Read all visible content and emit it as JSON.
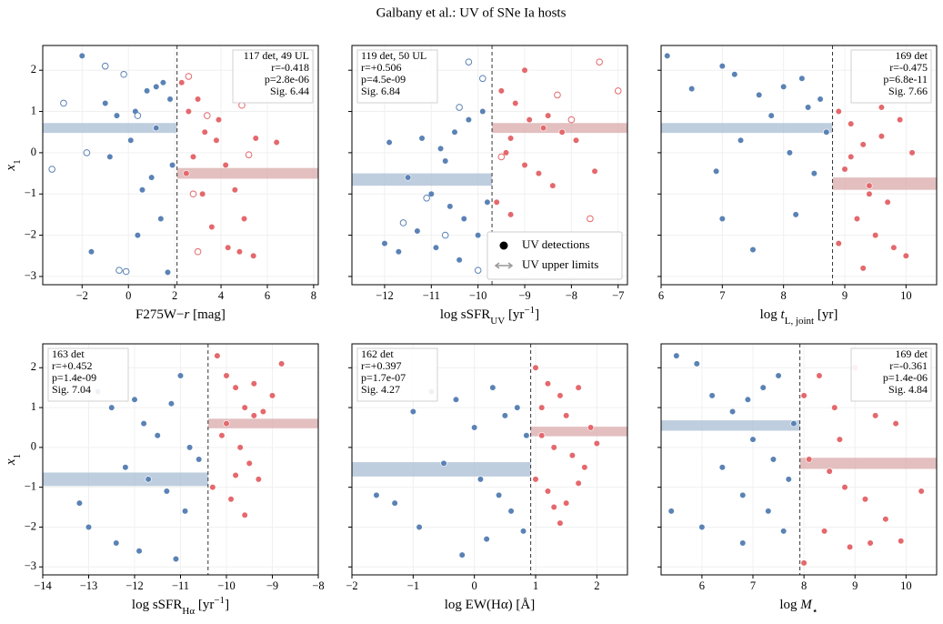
{
  "title": "Galbany et al.: UV of SNe Ia hosts",
  "chart_data": [
    {
      "type": "scatter",
      "xlabel": [
        {
          "t": "F275W−"
        },
        {
          "t": "r",
          "italic": true
        },
        {
          "t": " [mag]"
        }
      ],
      "ylabel": [
        {
          "t": "x",
          "italic": true
        },
        {
          "t": "1",
          "sub": true
        }
      ],
      "xlim": [
        -3.7,
        8.2
      ],
      "ylim": [
        -3.2,
        2.6
      ],
      "xticks": [
        {
          "value": -2,
          "label": "−2"
        },
        0,
        2,
        4,
        6,
        8
      ],
      "yticks": [
        {
          "value": -3,
          "label": "−3"
        },
        {
          "value": -2,
          "label": "−2"
        },
        {
          "value": -1,
          "label": "−1"
        },
        0,
        1,
        2
      ],
      "show_ytick_labels": true,
      "grid": true,
      "split": 2.1,
      "stats": [
        "117 det, 49 UL",
        "r=-0.418",
        "p=2.8e-06",
        "Sig. 6.44"
      ],
      "stats_loc": "upper right",
      "bands": [
        {
          "side": "left",
          "color": "#a9bdd3",
          "y": 0.6,
          "err": 0.12
        },
        {
          "side": "right",
          "color": "#d9aaab",
          "y": -0.5,
          "err": 0.13
        }
      ],
      "series": [
        {
          "color": "#5a82b5",
          "marker": "filled",
          "x": [
            -2,
            -1,
            -0.5,
            0.3,
            0.8,
            1.2,
            1.5,
            1.8,
            -0.8,
            0.1,
            0.6,
            1.0,
            1.4,
            1.9,
            -1.6,
            0.4,
            1.7,
            1.2
          ],
          "values": [
            2.35,
            1.2,
            0.9,
            1.0,
            1.5,
            1.6,
            1.7,
            1.3,
            -0.1,
            0.3,
            -0.9,
            -0.6,
            -1.6,
            -0.3,
            -2.4,
            -2.0,
            -2.9,
            0.6
          ]
        },
        {
          "color": "#e4686c",
          "marker": "filled",
          "x": [
            2.3,
            2.6,
            3.0,
            3.3,
            3.8,
            4.2,
            4.6,
            5.0,
            5.5,
            6.4,
            2.5,
            3.2,
            3.6,
            4.3,
            4.8,
            5.4,
            2.8,
            3.9
          ],
          "values": [
            1.7,
            1.0,
            1.3,
            0.5,
            0.3,
            -0.3,
            -0.9,
            -1.6,
            0.35,
            0.25,
            -0.5,
            -1.0,
            -1.8,
            -2.3,
            -2.4,
            -2.5,
            -0.1,
            0.8
          ]
        },
        {
          "color": "#5a82b5",
          "marker": "open",
          "x": [
            -1,
            -0.2,
            -2.8,
            -3.3,
            0.4,
            -0.4,
            -0.1,
            -1.8
          ],
          "values": [
            2.1,
            1.9,
            1.2,
            -0.4,
            0.9,
            -2.85,
            -2.88,
            0
          ]
        },
        {
          "color": "#e4686c",
          "marker": "open",
          "x": [
            2.6,
            3.4,
            4.9,
            3.0,
            5.2,
            2.8
          ],
          "values": [
            1.85,
            0.9,
            1.15,
            -2.4,
            -0.05,
            -1.0
          ]
        }
      ]
    },
    {
      "type": "scatter",
      "xlabel": [
        {
          "t": "log sSFR"
        },
        {
          "t": "UV",
          "sub": true
        },
        {
          "t": " [yr"
        },
        {
          "t": "−1",
          "sup": true
        },
        {
          "t": "]"
        }
      ],
      "xlim": [
        -12.7,
        -6.8
      ],
      "ylim": [
        -3.2,
        2.6
      ],
      "xticks": [
        {
          "value": -12,
          "label": "−12"
        },
        {
          "value": -11,
          "label": "−11"
        },
        {
          "value": -10,
          "label": "−10"
        },
        {
          "value": -9,
          "label": "−9"
        },
        {
          "value": -8,
          "label": "−8"
        },
        {
          "value": -7,
          "label": "−7"
        }
      ],
      "yticks": [
        -3,
        -2,
        -1,
        0,
        1,
        2
      ],
      "show_ytick_labels": false,
      "grid": true,
      "split": -9.7,
      "stats": [
        "119 det, 50 UL",
        "r=+0.506",
        "p=4.5e-09",
        "Sig. 6.84"
      ],
      "stats_loc": "upper left",
      "bands": [
        {
          "side": "left",
          "color": "#a9bdd3",
          "y": -0.65,
          "err": 0.15
        },
        {
          "side": "right",
          "color": "#d9aaab",
          "y": 0.6,
          "err": 0.12
        }
      ],
      "legend": {
        "loc": "lower right",
        "entries": [
          {
            "label": "UV detections",
            "marker": "filled"
          },
          {
            "label": "UV upper limits",
            "marker": "arrow"
          }
        ]
      },
      "series": [
        {
          "color": "#5a82b5",
          "marker": "filled",
          "x": [
            -11.9,
            -11.2,
            -10.8,
            -10.5,
            -10.2,
            -9.9,
            -11.5,
            -11.0,
            -10.6,
            -10.3,
            -10.0,
            -11.7,
            -10.9,
            -10.4,
            -9.8,
            -11.3,
            -10.7,
            -12.0
          ],
          "values": [
            0.25,
            0.35,
            0.1,
            0.5,
            0.8,
            1.0,
            -0.6,
            -1.0,
            -1.3,
            -1.6,
            -2.0,
            -2.4,
            -2.3,
            -2.6,
            -1.2,
            -1.9,
            -0.2,
            -2.2
          ]
        },
        {
          "color": "#e4686c",
          "marker": "filled",
          "x": [
            -9.5,
            -9.2,
            -8.9,
            -8.6,
            -8.2,
            -7.9,
            -9.4,
            -9.0,
            -8.7,
            -8.4,
            -9.6,
            -9.3,
            -8.8,
            -9.1,
            -7.5,
            -8.5,
            -9.3,
            -9.0
          ],
          "values": [
            1.5,
            1.2,
            0.8,
            0.6,
            0.5,
            0.3,
            0.0,
            -0.3,
            -0.5,
            -0.8,
            -1.2,
            -1.5,
            -2.0,
            -2.1,
            -0.45,
            0.9,
            0.35,
            2.0
          ]
        },
        {
          "color": "#5a82b5",
          "marker": "open",
          "x": [
            -10.2,
            -9.9,
            -10.4,
            -11.1,
            -11.6,
            -10.7,
            -10.0
          ],
          "values": [
            2.2,
            1.8,
            1.1,
            -1.1,
            -1.7,
            -2.0,
            -2.85
          ]
        },
        {
          "color": "#e4686c",
          "marker": "open",
          "x": [
            -7.4,
            -7.0,
            -8.0,
            -9.5,
            -7.6,
            -8.3
          ],
          "values": [
            2.2,
            1.5,
            0.8,
            -0.1,
            -1.6,
            1.4
          ]
        }
      ]
    },
    {
      "type": "scatter",
      "xlabel": [
        {
          "t": "log "
        },
        {
          "t": "t",
          "italic": true
        },
        {
          "t": "L, joint",
          "sub": true
        },
        {
          "t": " [yr]"
        }
      ],
      "xlim": [
        6,
        10.5
      ],
      "ylim": [
        -3.2,
        2.6
      ],
      "xticks": [
        6,
        7,
        8,
        9,
        10
      ],
      "yticks": [
        -3,
        -2,
        -1,
        0,
        1,
        2
      ],
      "show_ytick_labels": false,
      "grid": true,
      "split": 8.8,
      "stats": [
        "169 det",
        "r=-0.475",
        "p=6.8e-11",
        "Sig. 7.66"
      ],
      "stats_loc": "upper right",
      "bands": [
        {
          "side": "left",
          "color": "#a9bdd3",
          "y": 0.6,
          "err": 0.12
        },
        {
          "side": "right",
          "color": "#d9aaab",
          "y": -0.75,
          "err": 0.15
        }
      ],
      "series": [
        {
          "color": "#5a82b5",
          "marker": "filled",
          "x": [
            6.1,
            6.5,
            7.0,
            7.2,
            7.6,
            8.0,
            8.3,
            8.6,
            7.8,
            8.4,
            8.7,
            7.3,
            8.1,
            8.5,
            7.0,
            7.5,
            8.2,
            6.9
          ],
          "values": [
            2.35,
            1.55,
            2.1,
            1.9,
            1.4,
            1.6,
            1.8,
            1.3,
            0.9,
            1.1,
            0.5,
            0.3,
            0.0,
            -0.5,
            -1.6,
            -2.35,
            -1.5,
            -0.45
          ]
        },
        {
          "color": "#e4686c",
          "marker": "filled",
          "x": [
            8.9,
            9.1,
            9.3,
            9.6,
            9.9,
            10.1,
            9.0,
            9.4,
            9.7,
            9.2,
            9.5,
            9.8,
            10.0,
            9.3,
            9.1,
            9.6,
            8.9,
            9.4
          ],
          "values": [
            1.0,
            0.7,
            0.2,
            0.4,
            0.8,
            0.0,
            -0.4,
            -0.8,
            -1.2,
            -1.6,
            -2.0,
            -2.3,
            -2.5,
            -2.8,
            -0.1,
            1.1,
            -2.2,
            -1.0
          ]
        }
      ]
    },
    {
      "type": "scatter",
      "xlabel": [
        {
          "t": "log sSFR"
        },
        {
          "t": "Hα",
          "sub": true
        },
        {
          "t": " [yr"
        },
        {
          "t": "−1",
          "sup": true
        },
        {
          "t": "]"
        }
      ],
      "ylabel": [
        {
          "t": "x",
          "italic": true
        },
        {
          "t": "1",
          "sub": true
        }
      ],
      "xlim": [
        -14,
        -8
      ],
      "ylim": [
        -3.2,
        2.6
      ],
      "xticks": [
        {
          "value": -14,
          "label": "−14"
        },
        {
          "value": -13,
          "label": "−13"
        },
        {
          "value": -12,
          "label": "−12"
        },
        {
          "value": -11,
          "label": "−11"
        },
        {
          "value": -10,
          "label": "−10"
        },
        {
          "value": -9,
          "label": "−9"
        },
        {
          "value": -8,
          "label": "−8"
        }
      ],
      "yticks": [
        {
          "value": -3,
          "label": "−3"
        },
        {
          "value": -2,
          "label": "−2"
        },
        {
          "value": -1,
          "label": "−1"
        },
        0,
        1,
        2
      ],
      "show_ytick_labels": true,
      "grid": true,
      "split": -10.4,
      "stats": [
        "163 det",
        "r=+0.452",
        "p=1.4e-09",
        "Sig. 7.04"
      ],
      "stats_loc": "upper left",
      "bands": [
        {
          "side": "left",
          "color": "#a9bdd3",
          "y": -0.8,
          "err": 0.17
        },
        {
          "side": "right",
          "color": "#d9aaab",
          "y": 0.6,
          "err": 0.12
        }
      ],
      "series": [
        {
          "color": "#5a82b5",
          "marker": "filled",
          "x": [
            -13.2,
            -12.8,
            -12.5,
            -12.0,
            -11.8,
            -11.5,
            -11.2,
            -11.0,
            -10.8,
            -10.6,
            -12.2,
            -11.7,
            -11.3,
            -10.9,
            -13.0,
            -12.4,
            -11.9,
            -11.1
          ],
          "values": [
            -1.4,
            1.4,
            1.0,
            1.2,
            0.6,
            0.3,
            1.1,
            1.8,
            0.0,
            -0.3,
            -0.5,
            -0.8,
            -1.1,
            -1.6,
            -2.0,
            -2.4,
            -2.6,
            -2.8
          ]
        },
        {
          "color": "#e4686c",
          "marker": "filled",
          "x": [
            -10.2,
            -10.0,
            -9.8,
            -9.6,
            -9.4,
            -9.0,
            -8.8,
            -10.1,
            -9.7,
            -9.5,
            -9.3,
            -10.3,
            -9.9,
            -9.6,
            -10.0,
            -9.2,
            -9.8,
            -9.4
          ],
          "values": [
            2.3,
            1.8,
            1.5,
            1.0,
            0.8,
            1.3,
            2.1,
            0.3,
            0.0,
            -0.4,
            -0.8,
            -1.0,
            -1.3,
            -1.7,
            0.6,
            0.9,
            -0.7,
            1.6
          ]
        }
      ]
    },
    {
      "type": "scatter",
      "xlabel": [
        {
          "t": "log EW(Hα) [Å]"
        }
      ],
      "xlim": [
        -2,
        2.5
      ],
      "ylim": [
        -3.2,
        2.6
      ],
      "xticks": [
        {
          "value": -2,
          "label": "−2"
        },
        {
          "value": -1,
          "label": "−1"
        },
        0,
        1,
        2
      ],
      "yticks": [
        -3,
        -2,
        -1,
        0,
        1,
        2
      ],
      "show_ytick_labels": false,
      "grid": true,
      "split": 0.92,
      "stats": [
        "162 det",
        "r=+0.397",
        "p=1.7e-07",
        "Sig. 4.27"
      ],
      "stats_loc": "upper left",
      "bands": [
        {
          "side": "left",
          "color": "#a9bdd3",
          "y": -0.55,
          "err": 0.18
        },
        {
          "side": "right",
          "color": "#d9aaab",
          "y": 0.4,
          "err": 0.12
        }
      ],
      "series": [
        {
          "color": "#5a82b5",
          "marker": "filled",
          "x": [
            -1.6,
            -1.0,
            -0.7,
            -0.3,
            0.0,
            0.3,
            0.5,
            0.7,
            0.85,
            -0.5,
            0.1,
            0.4,
            0.6,
            -1.3,
            -0.9,
            0.2,
            0.8,
            -0.2
          ],
          "values": [
            -1.2,
            0.9,
            1.4,
            1.2,
            0.5,
            1.5,
            0.8,
            1.0,
            0.3,
            -0.4,
            -0.8,
            -1.2,
            -1.6,
            -1.4,
            -2.0,
            -2.3,
            -2.1,
            -2.7
          ]
        },
        {
          "color": "#e4686c",
          "marker": "filled",
          "x": [
            1.0,
            1.2,
            1.4,
            1.5,
            1.7,
            1.9,
            1.1,
            1.3,
            1.6,
            1.8,
            1.0,
            1.2,
            1.5,
            1.4,
            1.7,
            1.1,
            1.3,
            2.0
          ],
          "values": [
            2.0,
            1.6,
            1.3,
            0.8,
            1.5,
            0.5,
            0.3,
            0.0,
            -0.2,
            -0.5,
            -0.8,
            -1.1,
            -1.4,
            -1.9,
            -0.9,
            1.0,
            -1.5,
            0.1
          ]
        }
      ]
    },
    {
      "type": "scatter",
      "xlabel": [
        {
          "t": "log "
        },
        {
          "t": "M",
          "italic": true
        },
        {
          "t": "⋆",
          "sub": true
        }
      ],
      "xlim": [
        5.2,
        10.6
      ],
      "ylim": [
        -3.2,
        2.6
      ],
      "xticks": [
        6,
        7,
        8,
        9,
        10
      ],
      "yticks": [
        -3,
        -2,
        -1,
        0,
        1,
        2
      ],
      "show_ytick_labels": false,
      "grid": true,
      "split": 7.92,
      "stats": [
        "169 det",
        "r=-0.361",
        "p=1.4e-06",
        "Sig. 4.84"
      ],
      "stats_loc": "upper right",
      "bands": [
        {
          "side": "left",
          "color": "#a9bdd3",
          "y": 0.55,
          "err": 0.13
        },
        {
          "side": "right",
          "color": "#d9aaab",
          "y": -0.4,
          "err": 0.14
        }
      ],
      "series": [
        {
          "color": "#5a82b5",
          "marker": "filled",
          "x": [
            5.5,
            5.9,
            6.2,
            6.6,
            6.9,
            7.2,
            7.5,
            7.8,
            7.0,
            7.4,
            7.7,
            6.4,
            6.8,
            7.3,
            5.4,
            6.0,
            6.8,
            7.6
          ],
          "values": [
            2.3,
            2.1,
            1.3,
            0.9,
            1.2,
            1.5,
            1.8,
            0.6,
            0.2,
            -0.3,
            -0.8,
            -0.5,
            -1.2,
            -1.6,
            -1.6,
            -2.0,
            -2.4,
            -2.1
          ]
        },
        {
          "color": "#e4686c",
          "marker": "filled",
          "x": [
            8.0,
            8.3,
            8.6,
            9.0,
            9.4,
            9.8,
            10.3,
            8.1,
            8.5,
            8.8,
            9.2,
            9.6,
            8.4,
            8.9,
            9.3,
            8.0,
            8.7,
            9.9
          ],
          "values": [
            1.3,
            1.8,
            1.0,
            2.0,
            0.8,
            0.6,
            -1.1,
            -0.3,
            -0.6,
            -1.0,
            -1.3,
            -1.8,
            -2.1,
            -2.5,
            -2.4,
            -2.9,
            0.2,
            -2.35
          ]
        }
      ]
    }
  ]
}
